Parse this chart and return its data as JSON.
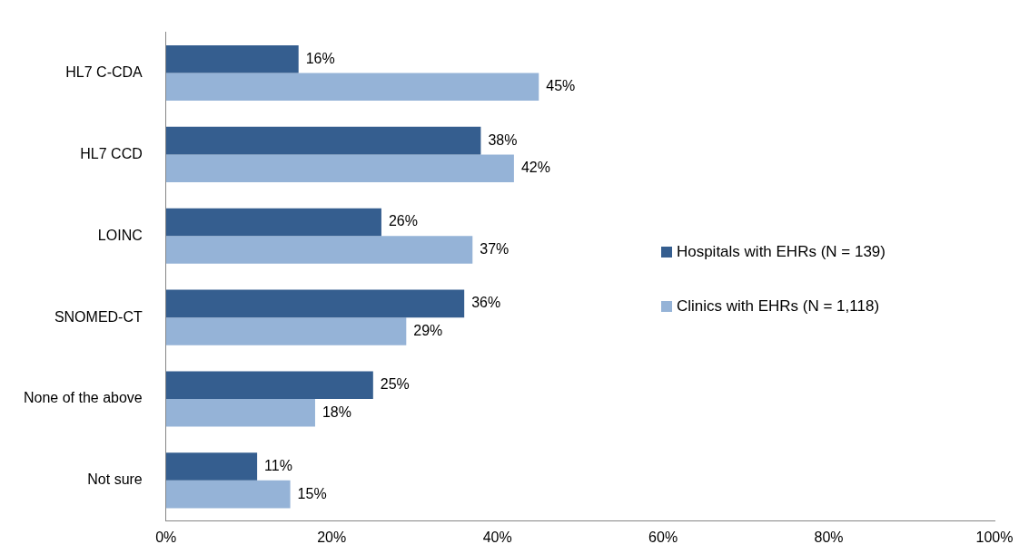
{
  "chart_data": {
    "type": "bar",
    "orientation": "horizontal",
    "categories": [
      "HL7 C-CDA",
      "HL7 CCD",
      "LOINC",
      "SNOMED-CT",
      "None of the above",
      "Not sure"
    ],
    "series": [
      {
        "name": "Hospitals with EHRs (N = 139)",
        "color": "#355e8f",
        "values": [
          16,
          38,
          26,
          36,
          25,
          11
        ],
        "value_labels": [
          "16%",
          "38%",
          "26%",
          "36%",
          "25%",
          "11%"
        ]
      },
      {
        "name": "Clinics with EHRs (N = 1,118)",
        "color": "#95b3d7",
        "values": [
          45,
          42,
          37,
          29,
          18,
          15
        ],
        "value_labels": [
          "45%",
          "42%",
          "37%",
          "29%",
          "18%",
          "15%"
        ]
      }
    ],
    "xlim": [
      0,
      100
    ],
    "xticks": [
      {
        "value": 0,
        "label": "0%"
      },
      {
        "value": 20,
        "label": "20%"
      },
      {
        "value": 40,
        "label": "40%"
      },
      {
        "value": 60,
        "label": "60%"
      },
      {
        "value": 80,
        "label": "80%"
      },
      {
        "value": 100,
        "label": "100%"
      }
    ],
    "grid": false,
    "legend": "right"
  }
}
